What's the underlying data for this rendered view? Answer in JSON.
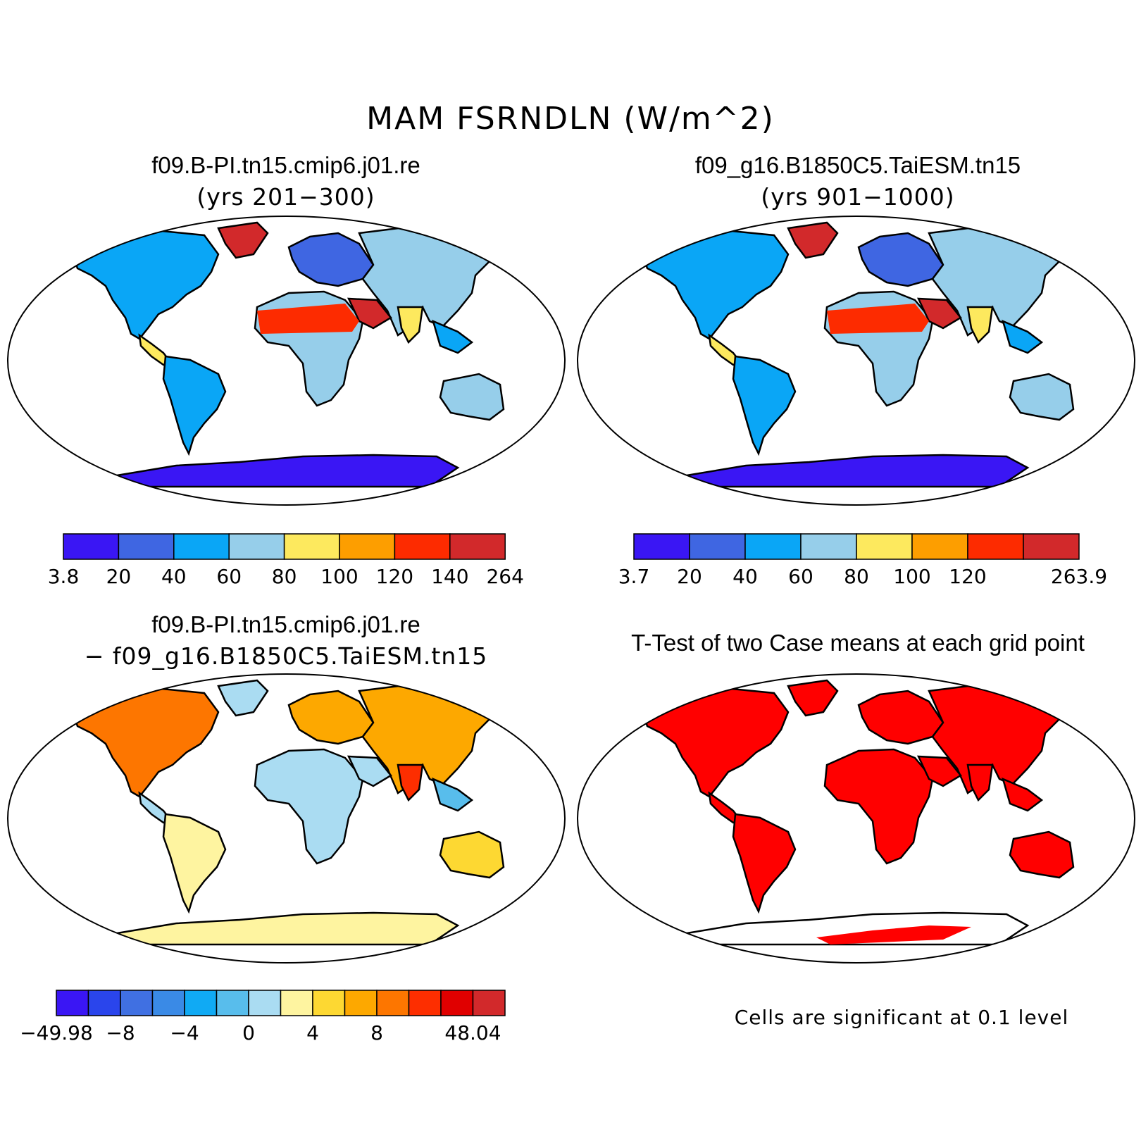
{
  "title": "MAM FSRNDLN (W/m^2)",
  "colors": {
    "land_outline": "#000000",
    "significant": "#ff0000"
  },
  "panels": [
    {
      "id": "case1",
      "title": "f09.B-PI.tn15.cmip6.j01.re",
      "subtitle": "(yrs 201−300)",
      "colorbar": {
        "colors": [
          "#3a16f4",
          "#3f66e2",
          "#0aa6f6",
          "#96ceea",
          "#fde95e",
          "#fd9e00",
          "#fd2b00",
          "#d2292b"
        ],
        "labels": [
          "3.8",
          "20",
          "40",
          "60",
          "80",
          "100",
          "120",
          "140",
          "264"
        ]
      }
    },
    {
      "id": "case2",
      "title": "f09_g16.B1850C5.TaiESM.tn15",
      "subtitle": "(yrs 901−1000)",
      "colorbar": {
        "colors": [
          "#3a16f4",
          "#3f66e2",
          "#0aa6f6",
          "#96ceea",
          "#fde95e",
          "#fd9e00",
          "#fd2b00",
          "#d2292b"
        ],
        "labels": [
          "3.7",
          "20",
          "40",
          "60",
          "80",
          "100",
          "120",
          "",
          "263.9"
        ]
      }
    },
    {
      "id": "diff",
      "title": "f09.B-PI.tn15.cmip6.j01.re",
      "subtitle": "− f09_g16.B1850C5.TaiESM.tn15",
      "colorbar": {
        "colors": [
          "#3a16f4",
          "#2a45ec",
          "#4070e2",
          "#3a8ae6",
          "#10aaf4",
          "#58bdec",
          "#aadcf2",
          "#fef4a0",
          "#fdd832",
          "#fda800",
          "#fd7600",
          "#fd2e00",
          "#e00000",
          "#d2292b"
        ],
        "labels": [
          "−49.98",
          "",
          "−8",
          "",
          "−4",
          "",
          "0",
          "",
          "4",
          "",
          "8",
          "",
          "",
          "48.04"
        ]
      }
    },
    {
      "id": "ttest",
      "title": "T-Test of two Case means at each grid point",
      "note": "Cells are significant at 0.1 level"
    }
  ]
}
